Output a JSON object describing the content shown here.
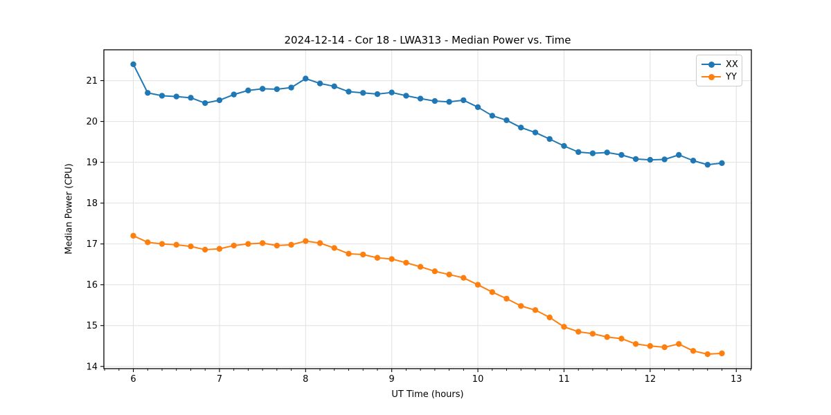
{
  "chart_data": {
    "type": "line",
    "title": "2024-12-14 - Cor 18 - LWA313 - Median Power vs. Time",
    "xlabel": "UT Time (hours)",
    "ylabel": "Median Power (CPU)",
    "xlim": [
      5.658,
      13.175
    ],
    "ylim": [
      13.945,
      21.755
    ],
    "xticks": [
      6,
      7,
      8,
      9,
      10,
      11,
      12,
      13
    ],
    "yticks": [
      14,
      15,
      16,
      17,
      18,
      19,
      20,
      21
    ],
    "x_minor_step": 0.166667,
    "grid": true,
    "grid_color": "#e0e0e0",
    "spine_color": "#000000",
    "legend_position": "upper right",
    "x": [
      6.0,
      6.167,
      6.333,
      6.5,
      6.667,
      6.833,
      7.0,
      7.167,
      7.333,
      7.5,
      7.667,
      7.833,
      8.0,
      8.167,
      8.333,
      8.5,
      8.667,
      8.833,
      9.0,
      9.167,
      9.333,
      9.5,
      9.667,
      9.833,
      10.0,
      10.167,
      10.333,
      10.5,
      10.667,
      10.833,
      11.0,
      11.167,
      11.333,
      11.5,
      11.667,
      11.833,
      12.0,
      12.167,
      12.333,
      12.5,
      12.667,
      12.833
    ],
    "series": [
      {
        "name": "XX",
        "color": "#1f77b4",
        "values": [
          21.4,
          20.7,
          20.63,
          20.61,
          20.58,
          20.45,
          20.52,
          20.66,
          20.76,
          20.8,
          20.79,
          20.83,
          21.05,
          20.93,
          20.86,
          20.73,
          20.7,
          20.67,
          20.71,
          20.63,
          20.56,
          20.5,
          20.48,
          20.52,
          20.35,
          20.14,
          20.03,
          19.85,
          19.73,
          19.57,
          19.4,
          19.25,
          19.22,
          19.24,
          19.18,
          19.08,
          19.06,
          19.07,
          19.18,
          19.04,
          18.94,
          18.98
        ]
      },
      {
        "name": "YY",
        "color": "#ff7f0e",
        "values": [
          17.2,
          17.04,
          17.0,
          16.98,
          16.94,
          16.86,
          16.88,
          16.96,
          17.0,
          17.02,
          16.96,
          16.98,
          17.07,
          17.02,
          16.9,
          16.76,
          16.74,
          16.66,
          16.63,
          16.54,
          16.44,
          16.33,
          16.25,
          16.17,
          16.0,
          15.82,
          15.66,
          15.48,
          15.38,
          15.2,
          14.97,
          14.85,
          14.8,
          14.72,
          14.68,
          14.55,
          14.5,
          14.47,
          14.55,
          14.38,
          14.3,
          14.32
        ]
      }
    ]
  },
  "legend": {
    "items": [
      {
        "label": "XX",
        "color": "#1f77b4"
      },
      {
        "label": "YY",
        "color": "#ff7f0e"
      }
    ]
  }
}
